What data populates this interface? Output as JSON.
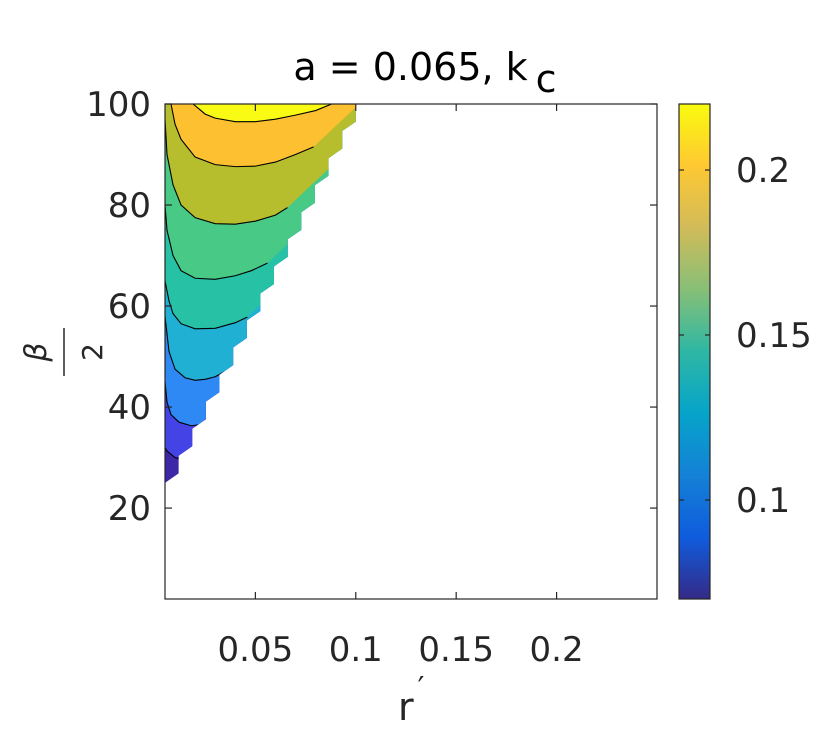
{
  "chart_data": {
    "type": "heatmap",
    "subtype": "filled-contour",
    "title": {
      "main": "a = 0.065,  k",
      "subscript": "c"
    },
    "xlabel": {
      "main": "r",
      "prime": "′"
    },
    "ylabel": {
      "numerator": "β",
      "denominator": "2"
    },
    "xlim": [
      0.005,
      0.25
    ],
    "ylim": [
      2,
      100
    ],
    "xticks": [
      0.05,
      0.1,
      0.15,
      0.2
    ],
    "xtick_labels": [
      "0.05",
      "0.1",
      "0.15",
      "0.2"
    ],
    "yticks": [
      20,
      40,
      60,
      80,
      100
    ],
    "ytick_labels": [
      "20",
      "40",
      "60",
      "80",
      "100"
    ],
    "colorbar": {
      "range": [
        0.07,
        0.22
      ],
      "ticks": [
        0.1,
        0.15,
        0.2
      ],
      "tick_labels": [
        "0.1",
        "0.15",
        "0.2"
      ],
      "colormap": "parula",
      "stops": [
        "#352A87",
        "#0F5CDD",
        "#1481D6",
        "#06A4CA",
        "#2EB7A4",
        "#87BF77",
        "#D1BB59",
        "#FEC832",
        "#F9FB0E"
      ]
    },
    "contour_levels": [
      0.085,
      0.1,
      0.115,
      0.13,
      0.145,
      0.16,
      0.175,
      0.19,
      0.205
    ],
    "band_colors": [
      "#3E26A8",
      "#4444E6",
      "#2E89F4",
      "#1FB0D4",
      "#27C2A5",
      "#48C985",
      "#B6BE2E",
      "#FCC031",
      "#F9FB14"
    ],
    "domain_boundary": {
      "r": [
        0.005,
        0.1
      ],
      "beta_over_2": [
        25,
        100
      ]
    },
    "contours": [
      {
        "level": 0.085,
        "points": [
          [
            0.005,
            32
          ],
          [
            0.006,
            31.3
          ],
          [
            0.01,
            30
          ],
          [
            0.012,
            29.8
          ]
        ]
      },
      {
        "level": 0.1,
        "points": [
          [
            0.005,
            45
          ],
          [
            0.006,
            41
          ],
          [
            0.008,
            38.5
          ],
          [
            0.012,
            37
          ],
          [
            0.018,
            36.3
          ],
          [
            0.022,
            36.5
          ]
        ]
      },
      {
        "level": 0.115,
        "points": [
          [
            0.005,
            58
          ],
          [
            0.007,
            51
          ],
          [
            0.01,
            47.5
          ],
          [
            0.015,
            45.8
          ],
          [
            0.02,
            45.3
          ],
          [
            0.025,
            45.5
          ],
          [
            0.03,
            46
          ],
          [
            0.036,
            47.3
          ]
        ]
      },
      {
        "level": 0.13,
        "points": [
          [
            0.005,
            65
          ],
          [
            0.007,
            61
          ],
          [
            0.009,
            58.5
          ],
          [
            0.013,
            56.5
          ],
          [
            0.02,
            55.5
          ],
          [
            0.03,
            55.6
          ],
          [
            0.04,
            56.7
          ],
          [
            0.046,
            57.8
          ]
        ]
      },
      {
        "level": 0.145,
        "points": [
          [
            0.005,
            80
          ],
          [
            0.006,
            75
          ],
          [
            0.009,
            70
          ],
          [
            0.013,
            67
          ],
          [
            0.02,
            65.5
          ],
          [
            0.03,
            65.3
          ],
          [
            0.04,
            66
          ],
          [
            0.048,
            67
          ],
          [
            0.056,
            68.5
          ]
        ]
      },
      {
        "level": 0.16,
        "points": [
          [
            0.005,
            97
          ],
          [
            0.006,
            90
          ],
          [
            0.009,
            84
          ],
          [
            0.013,
            80
          ],
          [
            0.02,
            77.5
          ],
          [
            0.03,
            76.3
          ],
          [
            0.04,
            76.2
          ],
          [
            0.05,
            76.8
          ],
          [
            0.06,
            78
          ],
          [
            0.066,
            79.5
          ]
        ]
      },
      {
        "level": 0.175,
        "points": [
          [
            0.008,
            100
          ],
          [
            0.01,
            96
          ],
          [
            0.013,
            93
          ],
          [
            0.02,
            89.5
          ],
          [
            0.03,
            88
          ],
          [
            0.04,
            87.6
          ],
          [
            0.05,
            87.7
          ],
          [
            0.06,
            88.5
          ],
          [
            0.07,
            90
          ],
          [
            0.079,
            91.5
          ]
        ]
      },
      {
        "level": 0.19,
        "points": [
          [
            0.019,
            100
          ],
          [
            0.025,
            98
          ],
          [
            0.03,
            97.2
          ],
          [
            0.04,
            96.5
          ],
          [
            0.05,
            96.5
          ],
          [
            0.06,
            97
          ],
          [
            0.07,
            97.8
          ],
          [
            0.08,
            98.7
          ],
          [
            0.088,
            100
          ]
        ]
      }
    ]
  }
}
